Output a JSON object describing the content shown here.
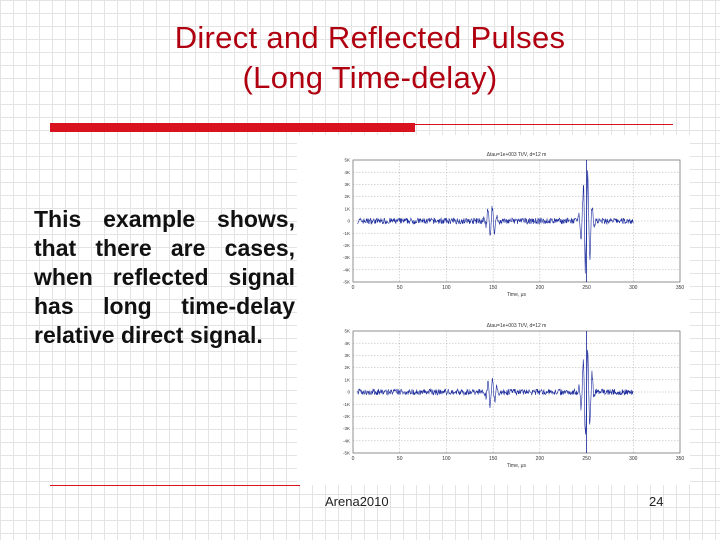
{
  "slide": {
    "title_line1": "Direct and Reflected Pulses",
    "title_line2": "(Long Time-delay)",
    "body": "This example shows, that there are cases, when reflected signal has long time-delay relative direct signal.",
    "footer_source": "Arena2010",
    "page_number": "24"
  },
  "colors": {
    "title": "#b00010",
    "accent": "#d8121e",
    "signal": "#1a2a9c"
  },
  "chart_data": [
    {
      "type": "line",
      "title": "Δtau=1e+003 Tt/V, d=12 m",
      "xlabel": "Time, μs",
      "xlim": [
        0,
        350
      ],
      "ylim": [
        -5,
        5
      ],
      "x_ticks": [
        0,
        50,
        100,
        150,
        200,
        250,
        300,
        350
      ],
      "y_ticks": [
        "5K",
        "4K",
        "3K",
        "2K",
        "1K",
        "0",
        "-1K",
        "-2K",
        "-3K",
        "-4K",
        "-5K"
      ],
      "grid": true,
      "series": [
        {
          "noise_amplitude": 0.25,
          "pulses": [
            {
              "center_x": 148,
              "amplitude": 1.5
            },
            {
              "center_x": 250,
              "amplitude": 5.0
            }
          ]
        }
      ]
    },
    {
      "type": "line",
      "title": "Δtau=1e+003 Tt/V, d=12 m",
      "xlabel": "Time, μs",
      "xlim": [
        0,
        350
      ],
      "ylim": [
        -5,
        5
      ],
      "x_ticks": [
        0,
        50,
        100,
        150,
        200,
        250,
        300,
        350
      ],
      "y_ticks": [
        "5K",
        "4K",
        "3K",
        "2K",
        "1K",
        "0",
        "-1K",
        "-2K",
        "-3K",
        "-4K",
        "-5K"
      ],
      "grid": true,
      "series": [
        {
          "noise_amplitude": 0.25,
          "pulses": [
            {
              "center_x": 148,
              "amplitude": 1.5
            },
            {
              "center_x": 250,
              "amplitude": 5.0
            }
          ]
        }
      ]
    }
  ]
}
